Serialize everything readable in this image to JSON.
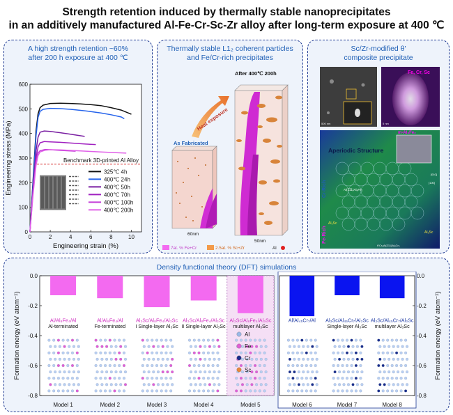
{
  "title": {
    "line1": "Strength retention induced by thermally stable nanoprecipitates",
    "line2": "in an additively manufactured Al-Fe-Cr-Sc-Zr alloy after long-term exposure at 400 ℃"
  },
  "panel_a": {
    "title1": "A high strength retention ~60%",
    "title2": "after 200 h exposure at 400 ℃",
    "benchmark_label": "Benchmark 3D-printed Al Alloy"
  },
  "panel_b": {
    "title1": "Thermally stable L1₂ coherent particles",
    "title2": "and Fe/Cr-rich precipitates",
    "after_label": "After 400℃ 200h",
    "heat_label": "Heat exposure",
    "fab_label": "As Fabricated",
    "scale1": "60nm",
    "scale2": "50nm",
    "legend1": "7at. % Fe+Cr",
    "legend2": "2.5at. % Sc+Zr",
    "legend3": "Al"
  },
  "panel_c": {
    "title1": "Sc/Zr-modified θ'",
    "title2": "composite precipitate",
    "map_label": "Fe, Cr, Sc",
    "motif_label": "m-Al₈Fe₂",
    "structure_label": "Aperiodic Structure",
    "cr_rich": "Cr-Rich",
    "fe_rich": "Fe-Rich",
    "phase_label": "Al(1̅1̅1)Al₈Fe₂",
    "al3sc_left": "Al₃Sc",
    "al3sc_right": "Al₃Sc",
    "bottom_label": "θ'Cr₆Al(211)Al₈Cr₃",
    "dir1": "[010]",
    "dir2": "[100]",
    "scale_small": "5 nm",
    "scale_sem": "500 nm"
  },
  "panel_d": {
    "title": "Density functional theory (DFT) simulations",
    "legend": [
      "Al",
      "Fe",
      "Cr",
      "Sc"
    ],
    "legend_colors": [
      "#9ab9e8",
      "#e25fd6",
      "#1a2e8c",
      "#e8893a"
    ]
  },
  "chart_data": [
    {
      "type": "line",
      "xlabel": "Engineering strain (%)",
      "ylabel": "Engineering stress (MPa)",
      "xlim": [
        0,
        11
      ],
      "ylim": [
        0,
        600
      ],
      "xticks": [
        0,
        2,
        4,
        6,
        8,
        10
      ],
      "yticks": [
        0,
        100,
        200,
        300,
        400,
        500,
        600
      ],
      "benchmark_line": 275,
      "legend_position": "center-right",
      "series": [
        {
          "name": "325℃ 4h",
          "color": "#111111",
          "x": [
            0,
            0.3,
            0.6,
            0.8,
            1.0,
            1.3,
            2,
            3,
            4,
            5,
            6,
            7,
            8,
            9,
            10.0
          ],
          "y": [
            0,
            210,
            410,
            480,
            505,
            515,
            522,
            523,
            522,
            520,
            517,
            513,
            505,
            495,
            478
          ]
        },
        {
          "name": "400℃ 24h",
          "color": "#2563eb",
          "x": [
            0,
            0.3,
            0.6,
            0.8,
            1.0,
            1.3,
            2,
            3,
            4,
            5,
            6,
            7,
            8,
            9,
            9.3
          ],
          "y": [
            0,
            200,
            390,
            465,
            490,
            498,
            502,
            501,
            498,
            494,
            489,
            483,
            476,
            467,
            460
          ]
        },
        {
          "name": "400℃ 50h",
          "color": "#7a1fa2",
          "x": [
            0,
            0.3,
            0.6,
            0.8,
            1.0,
            1.4,
            2,
            3,
            4,
            5.4
          ],
          "y": [
            0,
            180,
            330,
            385,
            405,
            410,
            408,
            403,
            397,
            388
          ]
        },
        {
          "name": "400℃ 70h",
          "color": "#a020c0",
          "x": [
            0,
            0.3,
            0.6,
            0.8,
            1.0,
            1.4,
            2,
            3,
            4,
            5.5,
            6.5
          ],
          "y": [
            0,
            170,
            300,
            345,
            362,
            367,
            366,
            364,
            361,
            357,
            355
          ]
        },
        {
          "name": "400℃ 100h",
          "color": "#c43cd8",
          "x": [
            0,
            0.3,
            0.6,
            0.8,
            1.0,
            1.5,
            2,
            3,
            4.5
          ],
          "y": [
            0,
            160,
            285,
            320,
            330,
            335,
            334,
            331,
            328
          ]
        },
        {
          "name": "400℃ 200h",
          "color": "#e060e8",
          "x": [
            0,
            0.3,
            0.6,
            0.8,
            1.0,
            1.5,
            2,
            3,
            4,
            5,
            6,
            7,
            8.5,
            9.5
          ],
          "y": [
            0,
            150,
            270,
            310,
            325,
            332,
            334,
            333,
            331,
            329,
            327,
            325,
            322,
            320
          ]
        }
      ]
    },
    {
      "type": "bar",
      "ylabel": "Formation energy (eV atom⁻¹)",
      "ylim": [
        -0.8,
        0.0
      ],
      "yticks": [
        0.0,
        -0.2,
        -0.4,
        -0.6,
        -0.8
      ],
      "categories": [
        "Model 1",
        "Model 2",
        "Model 3",
        "Model 4",
        "Model 5"
      ],
      "values": [
        -0.13,
        -0.15,
        -0.21,
        -0.165,
        -0.25
      ],
      "color": "#f36af0",
      "sublabels": [
        [
          "Al/Al₈Fe₄/Al",
          "Al-terminated"
        ],
        [
          "Al/Al₈Fe₄/Al",
          "Fe-terminated"
        ],
        [
          "Al₃Sc/Al₈Fe₄/Al₃Sc",
          "Ⅰ Single-layer Al₃Sc"
        ],
        [
          "Al₃Sc/Al₈Fe₄/Al₃Sc",
          "Ⅱ Single-layer Al₃Sc"
        ],
        [
          "Al₃Sc/Al₈Fe₄/Al₃Sc",
          "multilayer Al₃Sc"
        ]
      ]
    },
    {
      "type": "bar",
      "ylabel": "Formation energy (eV atom⁻¹)",
      "ylim": [
        -0.8,
        0.0
      ],
      "yticks": [
        0.0,
        -0.2,
        -0.4,
        -0.6,
        -0.8
      ],
      "categories": [
        "Model 6",
        "Model 7",
        "Model 8"
      ],
      "values": [
        -0.27,
        -0.13,
        -0.15
      ],
      "color": "#0a14f0",
      "sublabels": [
        [
          "Al/Al₄₅Cr₇/Al",
          ""
        ],
        [
          "Al₃Sc/Al₄₅Cr₇/Al₃Sc",
          "Single-layer Al₃Sc"
        ],
        [
          "Al₃Sc/Al₄₅Cr₇/Al₃Sc",
          "multilayer Al₃Sc"
        ]
      ]
    }
  ]
}
